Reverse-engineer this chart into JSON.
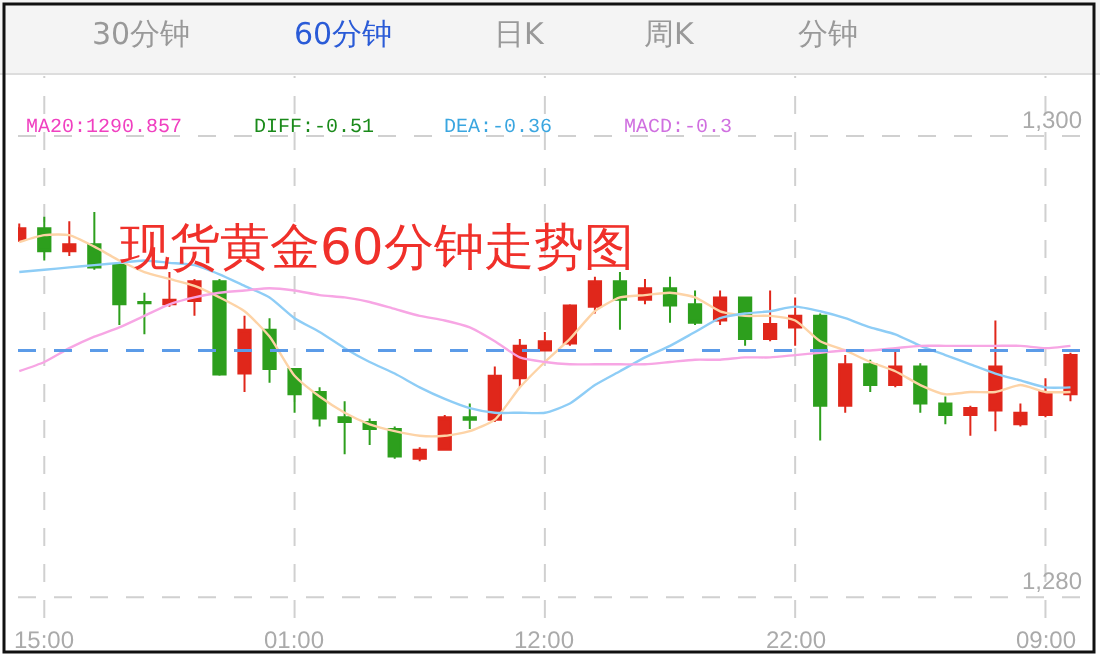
{
  "chart_data": {
    "type": "candlestick",
    "title": "现货黄金60分钟走势图",
    "categories": [
      null,
      "15:00",
      null,
      null,
      null,
      null,
      null,
      null,
      null,
      null,
      null,
      "01:00",
      null,
      null,
      null,
      null,
      null,
      null,
      null,
      null,
      null,
      "12:00",
      null,
      null,
      null,
      null,
      null,
      null,
      null,
      null,
      null,
      "22:00",
      null,
      null,
      null,
      null,
      null,
      null,
      null,
      null,
      null,
      "09:00",
      null
    ],
    "ohlc": [
      [
        1295.5,
        1296.2,
        1295.4,
        1296.0
      ],
      [
        1296.0,
        1296.5,
        1294.6,
        1295.0
      ],
      [
        1295.0,
        1296.3,
        1294.8,
        1295.3
      ],
      [
        1295.3,
        1296.7,
        1294.2,
        1294.3
      ],
      [
        1294.4,
        1294.5,
        1291.8,
        1292.7
      ],
      [
        1292.8,
        1293.2,
        1291.4,
        1292.75
      ],
      [
        1292.7,
        1294.1,
        1292.6,
        1292.9
      ],
      [
        1292.85,
        1293.8,
        1292.2,
        1293.7
      ],
      [
        1293.7,
        1293.8,
        1289.6,
        1289.66
      ],
      [
        1289.7,
        1292.2,
        1288.9,
        1291.6
      ],
      [
        1291.6,
        1292.1,
        1289.3,
        1289.9
      ],
      [
        1289.9,
        1289.9,
        1288.0,
        1288.8
      ],
      [
        1288.9,
        1289.1,
        1287.4,
        1287.75
      ],
      [
        1287.8,
        1288.5,
        1286.2,
        1287.6
      ],
      [
        1287.6,
        1287.75,
        1286.6,
        1287.3
      ],
      [
        1287.3,
        1287.4,
        1286.0,
        1286.1
      ],
      [
        1286.0,
        1286.5,
        1285.9,
        1286.4
      ],
      [
        1286.4,
        1287.9,
        1286.4,
        1287.8
      ],
      [
        1287.8,
        1288.4,
        1287.3,
        1287.7
      ],
      [
        1287.7,
        1290.0,
        1287.6,
        1289.6
      ],
      [
        1289.5,
        1291.2,
        1289.1,
        1290.9
      ],
      [
        1290.7,
        1291.5,
        1290.7,
        1291.1
      ],
      [
        1291.0,
        1292.7,
        1290.9,
        1292.65
      ],
      [
        1292.6,
        1293.9,
        1292.3,
        1293.7
      ],
      [
        1293.7,
        1294.1,
        1291.6,
        1292.9
      ],
      [
        1292.9,
        1293.8,
        1292.7,
        1293.4
      ],
      [
        1293.4,
        1293.9,
        1291.9,
        1292.65
      ],
      [
        1292.7,
        1293.3,
        1291.8,
        1291.9
      ],
      [
        1292.0,
        1293.3,
        1291.8,
        1293.0
      ],
      [
        1293.0,
        1293.0,
        1290.9,
        1291.2
      ],
      [
        1291.2,
        1293.3,
        1291.1,
        1291.85
      ],
      [
        1291.7,
        1293.0,
        1290.9,
        1292.2
      ],
      [
        1292.2,
        1292.3,
        1286.8,
        1288.3
      ],
      [
        1288.3,
        1290.5,
        1288.0,
        1290.1
      ],
      [
        1290.1,
        1290.3,
        1288.9,
        1289.2
      ],
      [
        1289.2,
        1290.8,
        1289.1,
        1290.0
      ],
      [
        1290.0,
        1290.15,
        1288.0,
        1288.4
      ],
      [
        1288.4,
        1288.7,
        1287.5,
        1287.9
      ],
      [
        1287.9,
        1288.3,
        1287.0,
        1288.2
      ],
      [
        1288.1,
        1292.0,
        1287.2,
        1290.0
      ],
      [
        1287.5,
        1288.4,
        1287.4,
        1288.0
      ],
      [
        1287.9,
        1289.5,
        1287.8,
        1288.9
      ],
      [
        1288.8,
        1290.6,
        1288.5,
        1290.5
      ]
    ],
    "colors": [
      "#e0271b",
      "#2d9f1d",
      "#e0271b",
      "#2d9f1d",
      "#2d9f1d",
      "#2d9f1d",
      "#e0271b",
      "#e0271b",
      "#2d9f1d",
      "#e0271b",
      "#2d9f1d",
      "#2d9f1d",
      "#2d9f1d",
      "#2d9f1d",
      "#2d9f1d",
      "#2d9f1d",
      "#e0271b",
      "#e0271b",
      "#2d9f1d",
      "#e0271b",
      "#e0271b",
      "#e0271b",
      "#e0271b",
      "#e0271b",
      "#2d9f1d",
      "#e0271b",
      "#2d9f1d",
      "#2d9f1d",
      "#e0271b",
      "#2d9f1d",
      "#e0271b",
      "#e0271b",
      "#2d9f1d",
      "#e0271b",
      "#2d9f1d",
      "#e0271b",
      "#2d9f1d",
      "#2d9f1d",
      "#e0271b",
      "#e0271b",
      "#e0271b",
      "#e0271b",
      "#e0271b"
    ],
    "series": [
      {
        "type": "line",
        "color": "#fdd3a6",
        "values": [
          1295.4,
          1295.7,
          1295.7,
          1295.2,
          1294.6,
          1294.1,
          1293.8,
          1293.5,
          1293.0,
          1292.4,
          1291.3,
          1289.6,
          1288.7,
          1288.0,
          1287.5,
          1287.2,
          1287.0,
          1287.0,
          1287.2,
          1287.7,
          1289.1,
          1290.2,
          1291.2,
          1292.4,
          1293.0,
          1293.1,
          1293.2,
          1293.0,
          1292.4,
          1292.2,
          1292.2,
          1292.0,
          1291.1,
          1290.7,
          1290.2,
          1289.8,
          1289.2,
          1288.8,
          1288.9,
          1288.9,
          1289.2,
          1288.9,
          1288.9
        ]
      },
      {
        "type": "line",
        "color": "#8ecdf6",
        "values": [
          1294.1,
          1294.2,
          1294.3,
          1294.4,
          1294.5,
          1294.6,
          1294.5,
          1294.4,
          1294.0,
          1293.5,
          1293.0,
          1292.1,
          1291.5,
          1290.8,
          1290.2,
          1289.7,
          1289.1,
          1288.6,
          1288.2,
          1288.0,
          1288.0,
          1288.0,
          1288.4,
          1289.2,
          1289.8,
          1290.4,
          1290.9,
          1291.5,
          1292.1,
          1292.3,
          1292.4,
          1292.6,
          1292.4,
          1292.1,
          1291.7,
          1291.4,
          1290.9,
          1290.5,
          1290.1,
          1289.7,
          1289.4,
          1289.1,
          1289.1
        ]
      },
      {
        "type": "line",
        "color": "#f7a6e4",
        "values": [
          1289.8,
          1290.2,
          1290.8,
          1291.3,
          1291.7,
          1292.2,
          1292.7,
          1293.0,
          1293.2,
          1293.3,
          1293.4,
          1293.3,
          1293.1,
          1293.0,
          1292.8,
          1292.5,
          1292.2,
          1292.0,
          1291.7,
          1291.1,
          1290.4,
          1290.2,
          1290.1,
          1290.1,
          1290.1,
          1290.1,
          1290.2,
          1290.3,
          1290.3,
          1290.4,
          1290.4,
          1290.5,
          1290.6,
          1290.7,
          1290.7,
          1290.8,
          1290.9,
          1290.9,
          1290.9,
          1290.9,
          1290.9,
          1290.8,
          1290.9
        ]
      }
    ],
    "ylim": [
      1279.1,
      1302.6
    ],
    "yticks": [
      {
        "value": 1280,
        "label": "1,280"
      },
      {
        "value": 1300,
        "label": "1,300"
      }
    ],
    "grid": true,
    "ref_lines": [
      {
        "axis": "y",
        "value": 1290.7,
        "color": "#5b9be8",
        "line_style": "dashed"
      }
    ],
    "annotations": [
      "30分钟",
      "60分钟",
      "日K",
      "周K",
      "分钟",
      "MA20:1290.857",
      "DIFF:-0.51",
      "DEA:-0.36",
      "MACD:-0.3"
    ]
  }
}
